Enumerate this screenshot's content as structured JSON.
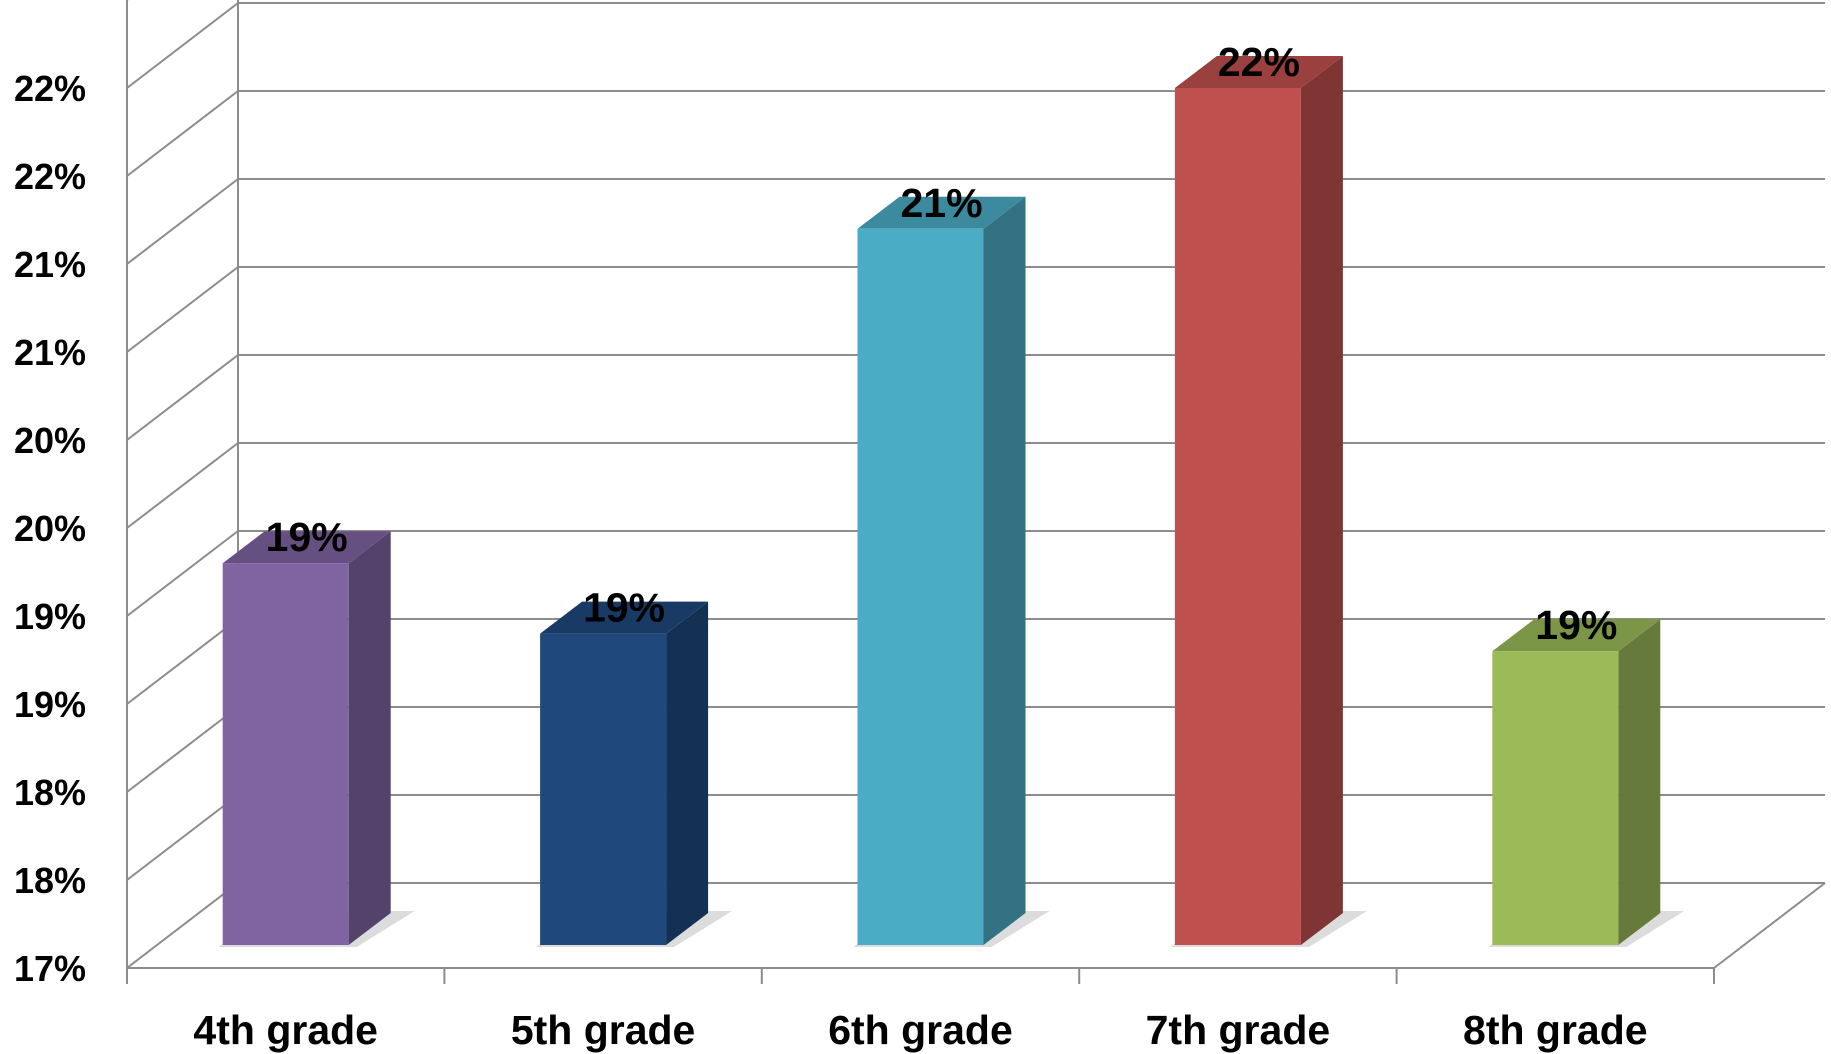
{
  "chart_data": {
    "type": "bar",
    "style": "3d-column",
    "categories": [
      "4th grade",
      "5th grade",
      "6th grade",
      "7th grade",
      "8th grade"
    ],
    "values": [
      19.3,
      18.9,
      21.2,
      22.0,
      18.8
    ],
    "data_labels": [
      "19%",
      "19%",
      "21%",
      "22%",
      "19%"
    ],
    "colors": [
      "#8064A2",
      "#1F497D",
      "#4BACC6",
      "#C0504D",
      "#9BBB59"
    ],
    "y_tick_values": [
      17.0,
      17.5,
      18.0,
      18.5,
      19.0,
      19.5,
      20.0,
      20.5,
      21.0,
      21.5,
      22.0
    ],
    "y_tick_labels": [
      "17%",
      "18%",
      "18%",
      "19%",
      "19%",
      "20%",
      "20%",
      "21%",
      "21%",
      "22%",
      "22%"
    ],
    "ylim": [
      17.0,
      22.5
    ],
    "grid": true,
    "legend": "none",
    "title": "",
    "xlabel": "",
    "ylabel": ""
  }
}
